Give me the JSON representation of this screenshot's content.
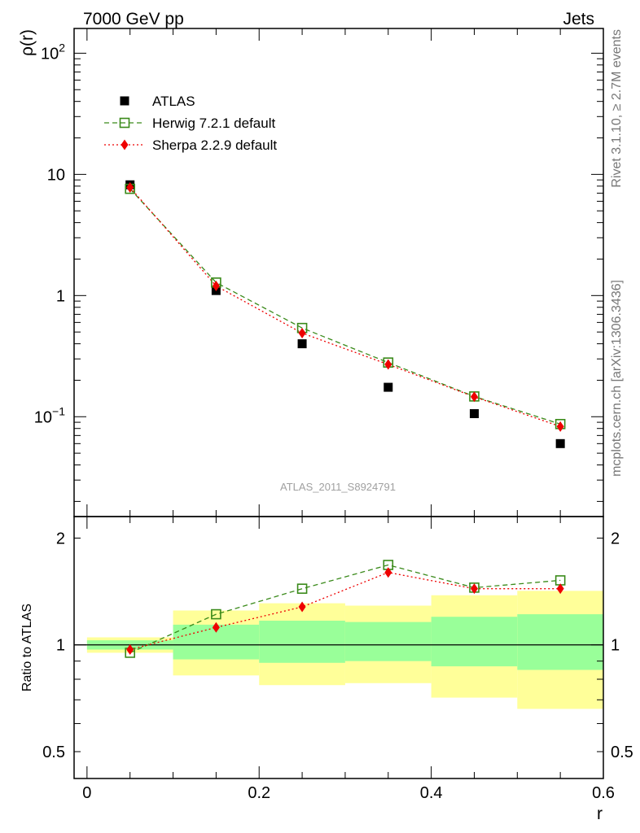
{
  "header": {
    "left": "7000 GeV pp",
    "right": "Jets"
  },
  "side_labels": {
    "rivet": "Rivet 3.1.10, ≥ 2.7M events",
    "mcplots": "mcplots.cern.ch [arXiv:1306.3436]"
  },
  "watermark": "ATLAS_2011_S8924791",
  "chart_data": [
    {
      "type": "scatter",
      "panel": "main",
      "ylabel": "ρ(r)",
      "xlabel": "",
      "yscale": "log",
      "ylim": [
        0.015,
        160
      ],
      "xlim": [
        -0.015,
        0.6
      ],
      "y_ticks": [
        {
          "value": 100,
          "label": "10",
          "sup": "2"
        },
        {
          "value": 10,
          "label": "10",
          "sup": ""
        },
        {
          "value": 1,
          "label": "1",
          "sup": ""
        },
        {
          "value": 0.1,
          "label": "10",
          "sup": "−1"
        }
      ],
      "legend_position": "top-left",
      "legend": [
        {
          "key": "atlas",
          "label": "ATLAS"
        },
        {
          "key": "herwig",
          "label": "Herwig 7.2.1 default"
        },
        {
          "key": "sherpa",
          "label": "Sherpa 2.2.9 default"
        }
      ],
      "x": [
        0.05,
        0.15,
        0.25,
        0.35,
        0.45,
        0.55
      ],
      "series": [
        {
          "key": "atlas",
          "name": "ATLAS",
          "color": "#000000",
          "marker": "square-filled",
          "line": "none",
          "values": [
            8.2,
            1.1,
            0.4,
            0.175,
            0.106,
            0.06
          ]
        },
        {
          "key": "herwig",
          "name": "Herwig 7.2.1 default",
          "color": "#3a8a1a",
          "marker": "square-open",
          "line": "dashed",
          "values": [
            7.6,
            1.28,
            0.54,
            0.28,
            0.147,
            0.087
          ]
        },
        {
          "key": "sherpa",
          "name": "Sherpa 2.2.9 default",
          "color": "#ee0000",
          "marker": "diamond-filled",
          "line": "dotted",
          "values": [
            7.8,
            1.2,
            0.49,
            0.27,
            0.146,
            0.083
          ]
        }
      ]
    },
    {
      "type": "scatter",
      "panel": "ratio",
      "ylabel": "Ratio to ATLAS",
      "xlabel": "r",
      "yscale": "log",
      "ylim": [
        0.42,
        2.3
      ],
      "xlim": [
        -0.015,
        0.6
      ],
      "y_ticks": [
        {
          "value": 2,
          "label": "2"
        },
        {
          "value": 1,
          "label": "1"
        },
        {
          "value": 0.5,
          "label": "0.5"
        }
      ],
      "x_ticks": [
        {
          "value": 0,
          "label": "0"
        },
        {
          "value": 0.2,
          "label": "0.2"
        },
        {
          "value": 0.4,
          "label": "0.4"
        },
        {
          "value": 0.6,
          "label": "0.6"
        }
      ],
      "reference_line": 1,
      "bands": [
        {
          "x0": 0.0,
          "x1": 0.1,
          "outer": [
            0.95,
            1.05
          ],
          "inner": [
            0.97,
            1.03
          ]
        },
        {
          "x0": 0.1,
          "x1": 0.2,
          "outer": [
            0.82,
            1.25
          ],
          "inner": [
            0.91,
            1.14
          ]
        },
        {
          "x0": 0.2,
          "x1": 0.3,
          "outer": [
            0.77,
            1.31
          ],
          "inner": [
            0.89,
            1.17
          ]
        },
        {
          "x0": 0.3,
          "x1": 0.4,
          "outer": [
            0.78,
            1.29
          ],
          "inner": [
            0.9,
            1.16
          ]
        },
        {
          "x0": 0.4,
          "x1": 0.5,
          "outer": [
            0.71,
            1.38
          ],
          "inner": [
            0.87,
            1.2
          ]
        },
        {
          "x0": 0.5,
          "x1": 0.6,
          "outer": [
            0.66,
            1.42
          ],
          "inner": [
            0.85,
            1.22
          ]
        }
      ],
      "band_colors": {
        "outer": "#ffff99",
        "inner": "#99ff99"
      },
      "x": [
        0.05,
        0.15,
        0.25,
        0.35,
        0.45,
        0.55
      ],
      "series": [
        {
          "key": "herwig",
          "name": "Herwig 7.2.1 default",
          "color": "#3a8a1a",
          "marker": "square-open",
          "line": "dashed",
          "values": [
            0.95,
            1.22,
            1.44,
            1.68,
            1.45,
            1.52
          ]
        },
        {
          "key": "sherpa",
          "name": "Sherpa 2.2.9 default",
          "color": "#ee0000",
          "marker": "diamond-filled",
          "line": "dotted",
          "values": [
            0.97,
            1.12,
            1.28,
            1.6,
            1.44,
            1.44
          ]
        }
      ]
    }
  ]
}
